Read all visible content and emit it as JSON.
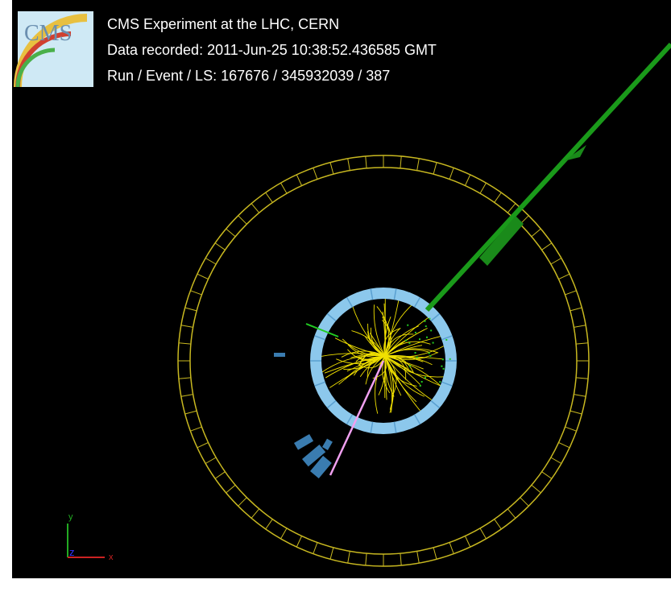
{
  "header": {
    "logo": "CMS",
    "lines": [
      "CMS Experiment at the LHC, CERN",
      "Data recorded: 2011-Jun-25 10:38:52.436585 GMT",
      "Run / Event / LS: 167676 / 345932039 / 387"
    ]
  },
  "axes": {
    "y": "y",
    "z": "z",
    "x": "x"
  }
}
